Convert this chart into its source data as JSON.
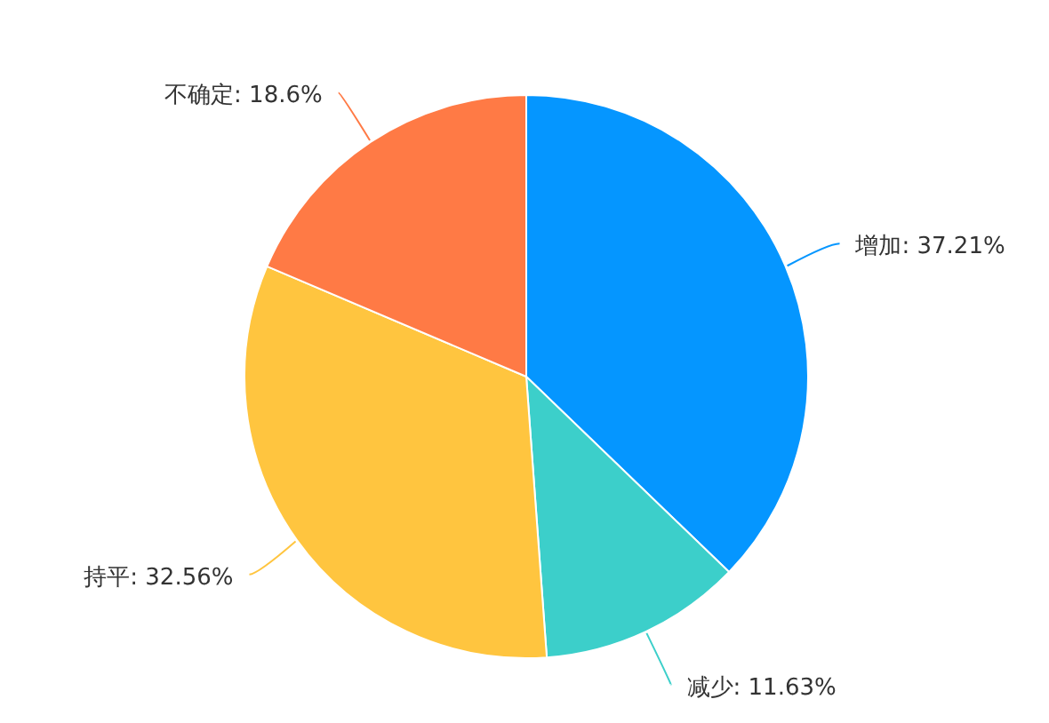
{
  "chart_data": {
    "type": "pie",
    "categories": [
      "增加",
      "减少",
      "持平",
      "不确定"
    ],
    "values": [
      37.21,
      11.63,
      32.56,
      18.6
    ],
    "colors": [
      "#0596ff",
      "#3ccfca",
      "#ffc53f",
      "#ff7a45"
    ],
    "value_labels": [
      "37.21%",
      "11.63%",
      "32.56%",
      "18.6%"
    ]
  }
}
